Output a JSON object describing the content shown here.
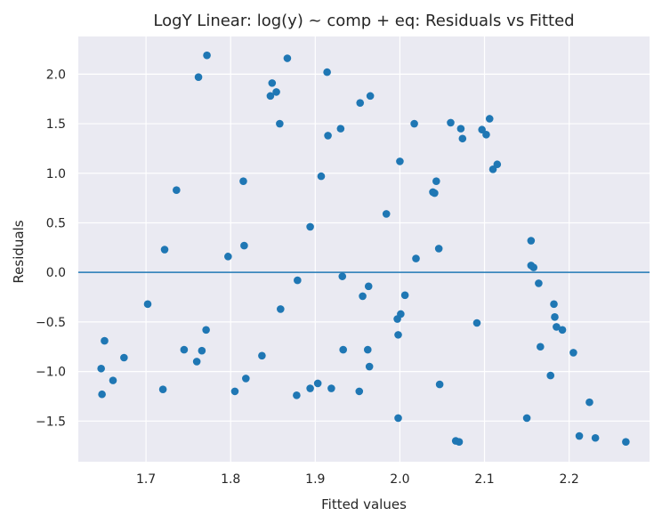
{
  "chart_data": {
    "type": "scatter",
    "title": "LogY Linear: log(y) ~ comp + eq: Residuals vs Fitted",
    "xlabel": "Fitted values",
    "ylabel": "Residuals",
    "xlim": [
      1.62,
      2.295
    ],
    "ylim": [
      -1.91,
      2.38
    ],
    "xticks": [
      1.7,
      1.8,
      1.9,
      2.0,
      2.1,
      2.2
    ],
    "xtick_labels": [
      "1.7",
      "1.8",
      "1.9",
      "2.0",
      "2.1",
      "2.2"
    ],
    "yticks": [
      -1.5,
      -1.0,
      -0.5,
      0.0,
      0.5,
      1.0,
      1.5,
      2.0
    ],
    "ytick_labels": [
      "−1.5",
      "−1.0",
      "−0.5",
      "0.0",
      "0.5",
      "1.0",
      "1.5",
      "2.0"
    ],
    "grid": true,
    "reference_line": 0.0,
    "point_color": "#1f77b4",
    "line_color": "#1f77b4",
    "background_color": "#eaeaf2",
    "points": [
      {
        "x": 1.647,
        "y": -0.97
      },
      {
        "x": 1.648,
        "y": -1.23
      },
      {
        "x": 1.651,
        "y": -0.69
      },
      {
        "x": 1.661,
        "y": -1.09
      },
      {
        "x": 1.674,
        "y": -0.86
      },
      {
        "x": 1.702,
        "y": -0.32
      },
      {
        "x": 1.72,
        "y": -1.18
      },
      {
        "x": 1.722,
        "y": 0.23
      },
      {
        "x": 1.736,
        "y": 0.83
      },
      {
        "x": 1.745,
        "y": -0.78
      },
      {
        "x": 1.76,
        "y": -0.9
      },
      {
        "x": 1.762,
        "y": 1.97
      },
      {
        "x": 1.766,
        "y": -0.79
      },
      {
        "x": 1.771,
        "y": -0.58
      },
      {
        "x": 1.772,
        "y": 2.19
      },
      {
        "x": 1.797,
        "y": 0.16
      },
      {
        "x": 1.805,
        "y": -1.2
      },
      {
        "x": 1.815,
        "y": 0.92
      },
      {
        "x": 1.816,
        "y": 0.27
      },
      {
        "x": 1.818,
        "y": -1.07
      },
      {
        "x": 1.837,
        "y": -0.84
      },
      {
        "x": 1.847,
        "y": 1.78
      },
      {
        "x": 1.849,
        "y": 1.91
      },
      {
        "x": 1.854,
        "y": 1.82
      },
      {
        "x": 1.858,
        "y": 1.5
      },
      {
        "x": 1.859,
        "y": -0.37
      },
      {
        "x": 1.867,
        "y": 2.16
      },
      {
        "x": 1.878,
        "y": -1.24
      },
      {
        "x": 1.879,
        "y": -0.08
      },
      {
        "x": 1.894,
        "y": 0.46
      },
      {
        "x": 1.894,
        "y": -1.17
      },
      {
        "x": 1.903,
        "y": -1.12
      },
      {
        "x": 1.907,
        "y": 0.97
      },
      {
        "x": 1.914,
        "y": 2.02
      },
      {
        "x": 1.915,
        "y": 1.38
      },
      {
        "x": 1.919,
        "y": -1.17
      },
      {
        "x": 1.93,
        "y": 1.45
      },
      {
        "x": 1.932,
        "y": -0.04
      },
      {
        "x": 1.933,
        "y": -0.78
      },
      {
        "x": 1.952,
        "y": -1.2
      },
      {
        "x": 1.953,
        "y": 1.71
      },
      {
        "x": 1.956,
        "y": -0.24
      },
      {
        "x": 1.962,
        "y": -0.78
      },
      {
        "x": 1.963,
        "y": -0.14
      },
      {
        "x": 1.964,
        "y": -0.95
      },
      {
        "x": 1.965,
        "y": 1.78
      },
      {
        "x": 1.984,
        "y": 0.59
      },
      {
        "x": 1.997,
        "y": -0.47
      },
      {
        "x": 1.998,
        "y": -0.63
      },
      {
        "x": 1.998,
        "y": -1.47
      },
      {
        "x": 2.0,
        "y": 1.12
      },
      {
        "x": 2.001,
        "y": -0.42
      },
      {
        "x": 2.006,
        "y": -0.23
      },
      {
        "x": 2.017,
        "y": 1.5
      },
      {
        "x": 2.019,
        "y": 0.14
      },
      {
        "x": 2.039,
        "y": 0.81
      },
      {
        "x": 2.041,
        "y": 0.8
      },
      {
        "x": 2.043,
        "y": 0.92
      },
      {
        "x": 2.046,
        "y": 0.24
      },
      {
        "x": 2.047,
        "y": -1.13
      },
      {
        "x": 2.06,
        "y": 1.51
      },
      {
        "x": 2.066,
        "y": -1.7
      },
      {
        "x": 2.07,
        "y": -1.71
      },
      {
        "x": 2.072,
        "y": 1.45
      },
      {
        "x": 2.074,
        "y": 1.35
      },
      {
        "x": 2.091,
        "y": -0.51
      },
      {
        "x": 2.097,
        "y": 1.44
      },
      {
        "x": 2.102,
        "y": 1.39
      },
      {
        "x": 2.106,
        "y": 1.55
      },
      {
        "x": 2.11,
        "y": 1.04
      },
      {
        "x": 2.115,
        "y": 1.09
      },
      {
        "x": 2.15,
        "y": -1.47
      },
      {
        "x": 2.155,
        "y": 0.32
      },
      {
        "x": 2.155,
        "y": 0.07
      },
      {
        "x": 2.158,
        "y": 0.05
      },
      {
        "x": 2.164,
        "y": -0.11
      },
      {
        "x": 2.166,
        "y": -0.75
      },
      {
        "x": 2.178,
        "y": -1.04
      },
      {
        "x": 2.182,
        "y": -0.32
      },
      {
        "x": 2.183,
        "y": -0.45
      },
      {
        "x": 2.185,
        "y": -0.55
      },
      {
        "x": 2.192,
        "y": -0.58
      },
      {
        "x": 2.205,
        "y": -0.81
      },
      {
        "x": 2.212,
        "y": -1.65
      },
      {
        "x": 2.224,
        "y": -1.31
      },
      {
        "x": 2.231,
        "y": -1.67
      },
      {
        "x": 2.267,
        "y": -1.71
      }
    ]
  }
}
